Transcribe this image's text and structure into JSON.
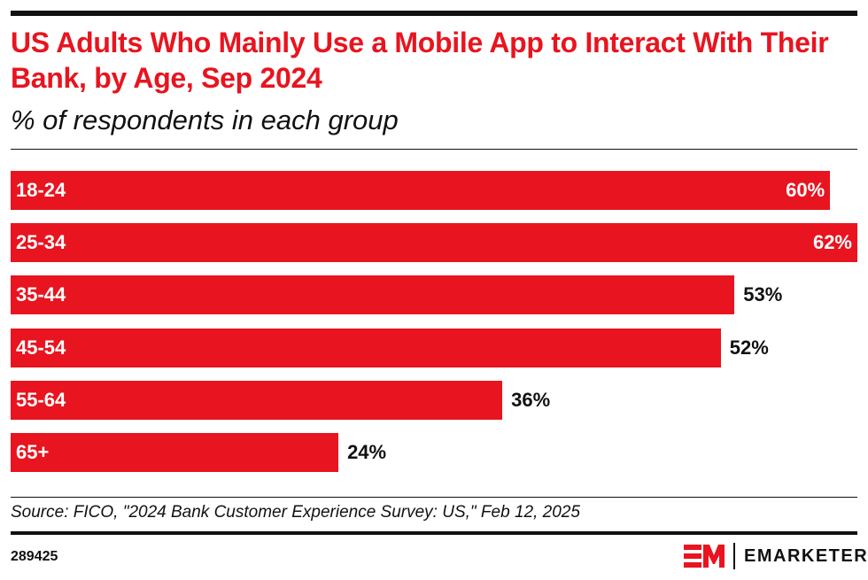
{
  "title": "US Adults Who Mainly Use a Mobile App to Interact With Their Bank, by Age, Sep 2024",
  "subtitle": "% of respondents in each group",
  "source": "Source: FICO, \"2024 Bank Customer Experience Survey: US,\" Feb 12, 2025",
  "chart_id": "289425",
  "brand": {
    "name": "EMARKETER",
    "logo": "EM",
    "accent": "#e8141f"
  },
  "chart_data": {
    "type": "bar",
    "orientation": "horizontal",
    "title": "US Adults Who Mainly Use a Mobile App to Interact With Their Bank, by Age, Sep 2024",
    "subtitle": "% of respondents in each group",
    "categories": [
      "18-24",
      "25-34",
      "35-44",
      "45-54",
      "55-64",
      "65+"
    ],
    "values": [
      60,
      62,
      53,
      52,
      36,
      24
    ],
    "labels": [
      "60%",
      "62%",
      "53%",
      "52%",
      "36%",
      "24%"
    ],
    "xlim": [
      0,
      62
    ],
    "grid": false,
    "color": "#e8141f"
  }
}
